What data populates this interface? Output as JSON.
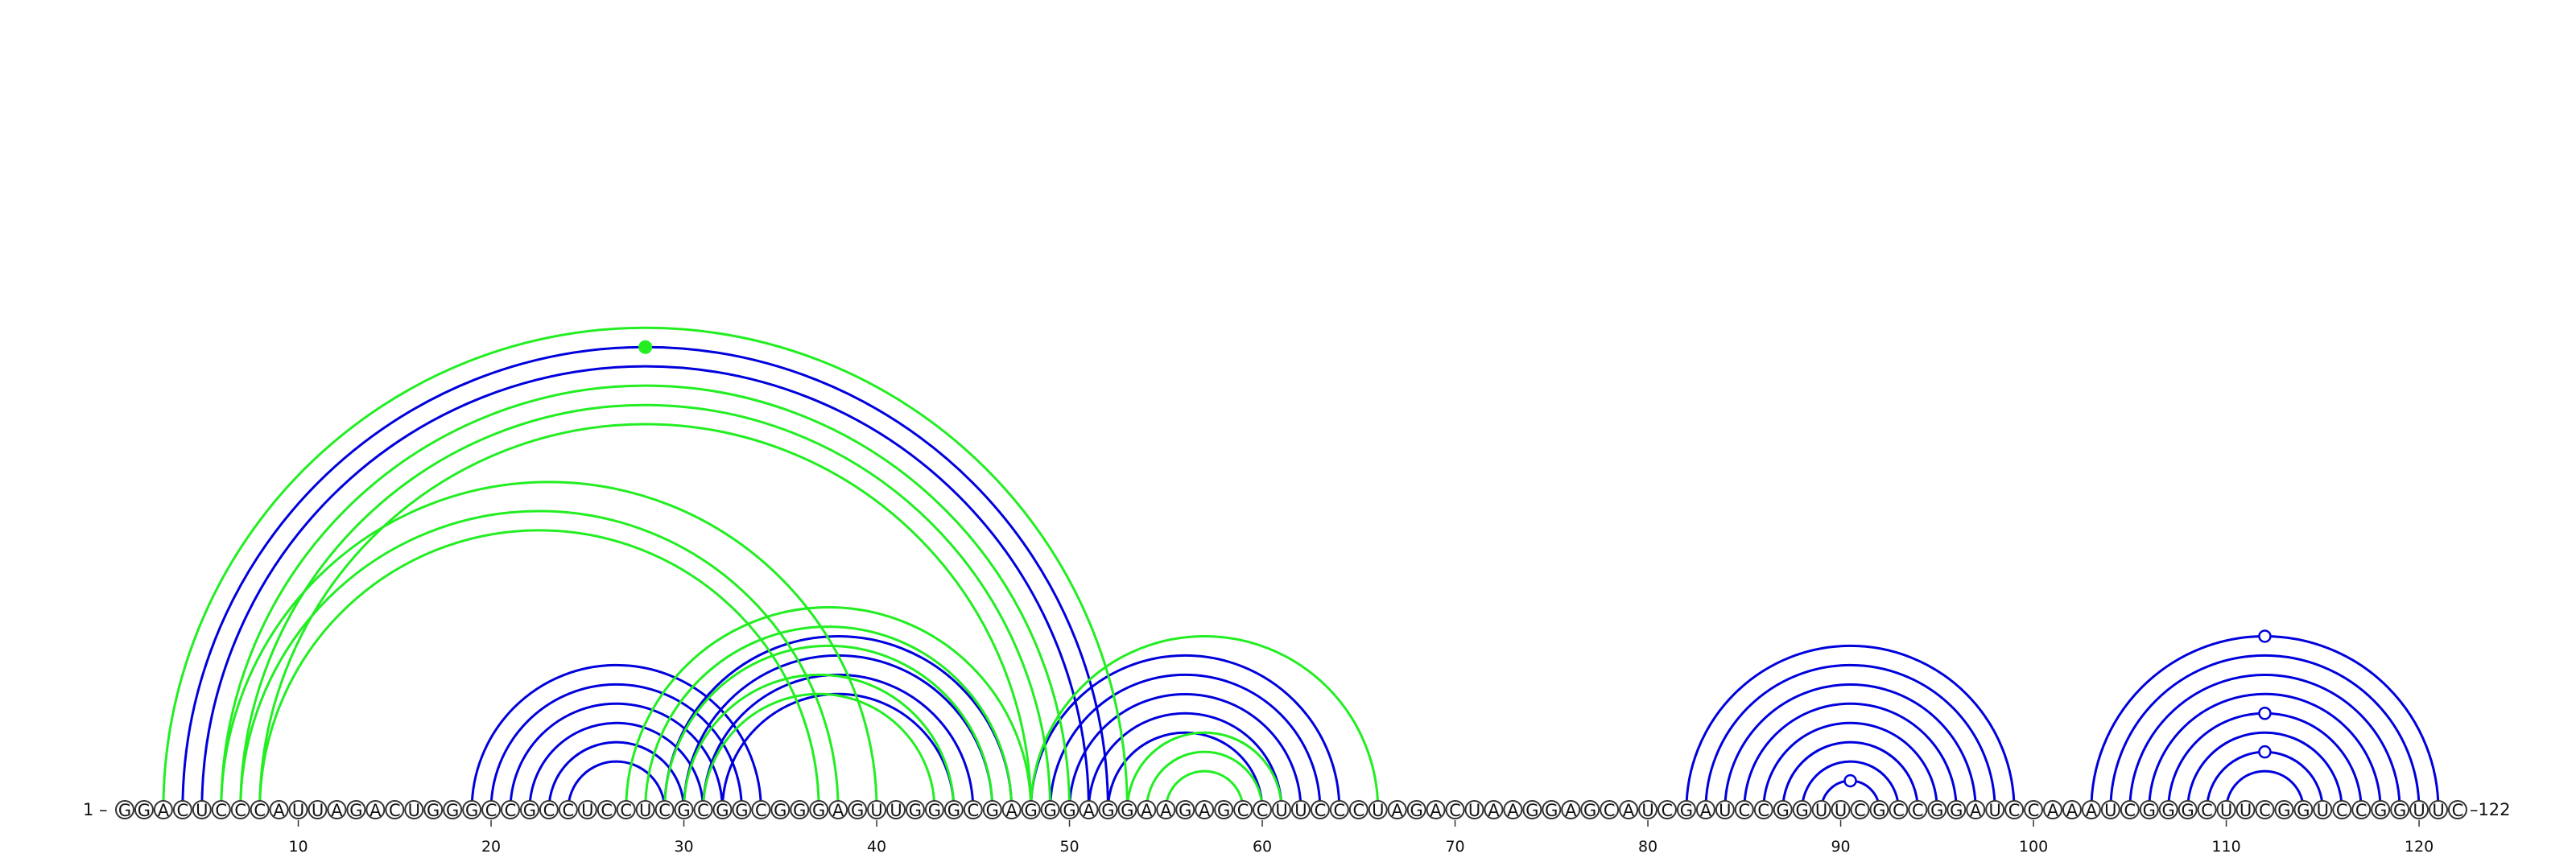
{
  "sequence": "GGACUCCCAUUAGACUGGGCCGCCUCCUCGCGGCGGGAGUUGGGCGAGGGAGGAAGAGCCUUCCCUAGACUAAGGAGCAUCGAUCCGGUUCGCCGGAUCCAAAUCGGGCUUCGGUCCGGUUC",
  "start_label": "1 –",
  "end_label": "–122",
  "ticks": [
    10,
    20,
    30,
    40,
    50,
    60,
    70,
    80,
    90,
    100,
    110,
    120
  ],
  "colors": {
    "blue": "#0000dd",
    "green": "#22ee22",
    "circle_stroke": "#333333"
  },
  "arcs": [
    {
      "i": 19,
      "j": 34,
      "color": "blue"
    },
    {
      "i": 20,
      "j": 33,
      "color": "blue"
    },
    {
      "i": 21,
      "j": 32,
      "color": "blue"
    },
    {
      "i": 22,
      "j": 31,
      "color": "blue"
    },
    {
      "i": 23,
      "j": 30,
      "color": "blue"
    },
    {
      "i": 24,
      "j": 29,
      "color": "blue"
    },
    {
      "i": 4,
      "j": 52,
      "color": "blue"
    },
    {
      "i": 5,
      "j": 51,
      "color": "blue"
    },
    {
      "i": 29,
      "j": 47,
      "color": "blue"
    },
    {
      "i": 30,
      "j": 46,
      "color": "blue"
    },
    {
      "i": 31,
      "j": 45,
      "color": "blue"
    },
    {
      "i": 32,
      "j": 44,
      "color": "blue"
    },
    {
      "i": 48,
      "j": 64,
      "color": "blue"
    },
    {
      "i": 49,
      "j": 63,
      "color": "blue"
    },
    {
      "i": 50,
      "j": 62,
      "color": "blue"
    },
    {
      "i": 51,
      "j": 61,
      "color": "blue"
    },
    {
      "i": 52,
      "j": 60,
      "color": "blue"
    },
    {
      "i": 82,
      "j": 99,
      "color": "blue"
    },
    {
      "i": 83,
      "j": 98,
      "color": "blue"
    },
    {
      "i": 84,
      "j": 97,
      "color": "blue"
    },
    {
      "i": 85,
      "j": 96,
      "color": "blue"
    },
    {
      "i": 86,
      "j": 95,
      "color": "blue"
    },
    {
      "i": 87,
      "j": 94,
      "color": "blue"
    },
    {
      "i": 88,
      "j": 93,
      "color": "blue"
    },
    {
      "i": 89,
      "j": 92,
      "color": "blue"
    },
    {
      "i": 103,
      "j": 121,
      "color": "blue"
    },
    {
      "i": 104,
      "j": 120,
      "color": "blue"
    },
    {
      "i": 105,
      "j": 119,
      "color": "blue"
    },
    {
      "i": 106,
      "j": 118,
      "color": "blue"
    },
    {
      "i": 107,
      "j": 117,
      "color": "blue"
    },
    {
      "i": 108,
      "j": 116,
      "color": "blue"
    },
    {
      "i": 109,
      "j": 115,
      "color": "blue"
    },
    {
      "i": 110,
      "j": 114,
      "color": "blue"
    },
    {
      "i": 3,
      "j": 53,
      "color": "green"
    },
    {
      "i": 6,
      "j": 50,
      "color": "green"
    },
    {
      "i": 7,
      "j": 49,
      "color": "green"
    },
    {
      "i": 8,
      "j": 48,
      "color": "green"
    },
    {
      "i": 6,
      "j": 40,
      "color": "green"
    },
    {
      "i": 7,
      "j": 38,
      "color": "green"
    },
    {
      "i": 8,
      "j": 37,
      "color": "green"
    },
    {
      "i": 27,
      "j": 48,
      "color": "green"
    },
    {
      "i": 28,
      "j": 47,
      "color": "green"
    },
    {
      "i": 29,
      "j": 46,
      "color": "green"
    },
    {
      "i": 30,
      "j": 44,
      "color": "green"
    },
    {
      "i": 31,
      "j": 43,
      "color": "green"
    },
    {
      "i": 48,
      "j": 66,
      "color": "green"
    },
    {
      "i": 53,
      "j": 61,
      "color": "green"
    },
    {
      "i": 54,
      "j": 60,
      "color": "green"
    },
    {
      "i": 55,
      "j": 59,
      "color": "green"
    }
  ],
  "markers": [
    {
      "between": [
        4,
        52
      ],
      "style": "filled",
      "color": "green"
    },
    {
      "between": [
        89,
        92
      ],
      "style": "open",
      "color": "blue"
    },
    {
      "between": [
        103,
        121
      ],
      "style": "open",
      "color": "blue"
    },
    {
      "between": [
        107,
        117
      ],
      "style": "open",
      "color": "blue"
    },
    {
      "between": [
        109,
        115
      ],
      "style": "open",
      "color": "blue"
    }
  ]
}
